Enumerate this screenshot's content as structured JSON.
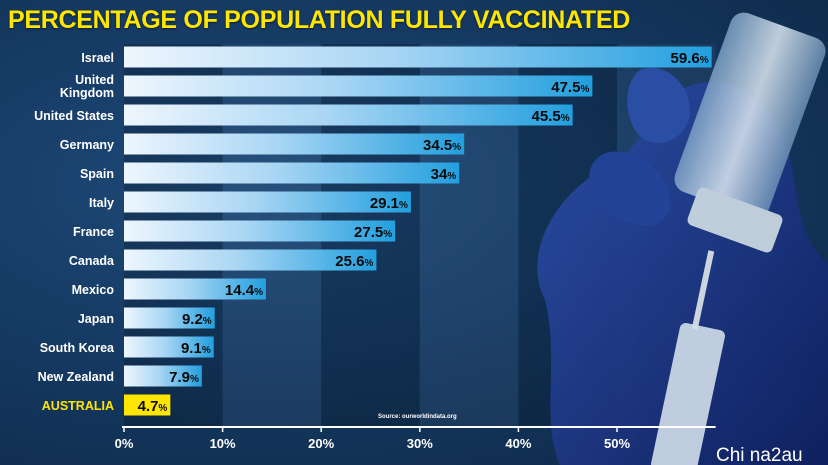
{
  "chart_data": {
    "type": "bar",
    "orientation": "horizontal",
    "title": "PERCENTAGE OF POPULATION FULLY VACCINATED",
    "categories": [
      "Israel",
      "United Kingdom",
      "United States",
      "Germany",
      "Spain",
      "Italy",
      "France",
      "Canada",
      "Mexico",
      "Japan",
      "South Korea",
      "New Zealand",
      "AUSTRALIA"
    ],
    "values": [
      59.6,
      47.5,
      45.5,
      34.5,
      34,
      29.1,
      27.5,
      25.6,
      14.4,
      9.2,
      9.1,
      7.9,
      4.7
    ],
    "value_labels": [
      "59.6",
      "47.5",
      "45.5",
      "34.5",
      "34",
      "29.1",
      "27.5",
      "25.6",
      "14.4",
      "9.2",
      "9.1",
      "7.9",
      "4.7"
    ],
    "value_unit": "%",
    "highlight": "AUSTRALIA",
    "xlim": [
      0,
      60
    ],
    "xticks": [
      "0%",
      "10%",
      "20%",
      "30%",
      "40%",
      "50%"
    ],
    "xtick_values": [
      0,
      10,
      20,
      30,
      40,
      50
    ],
    "grid": "alternating vertical bands",
    "source_note": "Source: ourworldindata.org",
    "colors": {
      "title": "#ffe600",
      "highlight": "#ffe600",
      "bar_light": "#e9f4fd",
      "bar_dark": "#27a3e0"
    }
  },
  "watermark": "Chi na2au"
}
